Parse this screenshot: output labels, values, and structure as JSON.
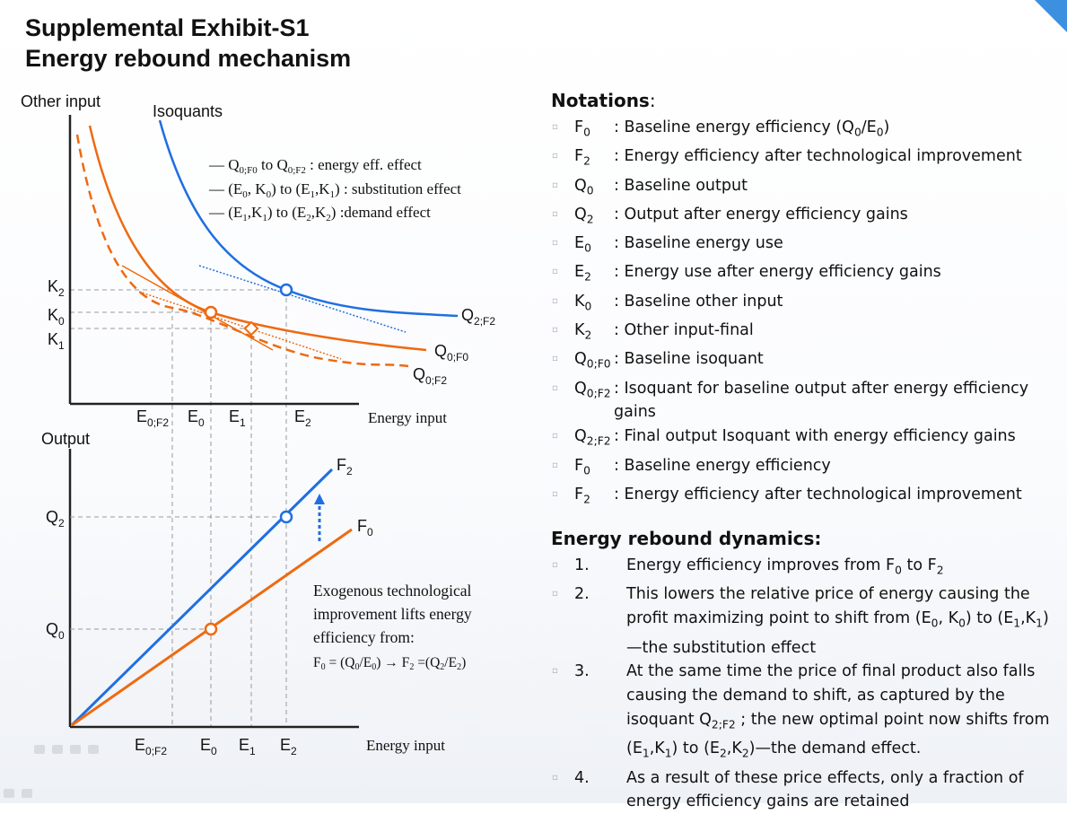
{
  "title": {
    "line1": "Supplemental Exhibit-S1",
    "line2": "Energy rebound mechanism"
  },
  "top_chart": {
    "ylabel": "Other input",
    "xlabel": "Energy input",
    "isoquants_label": "Isoquants",
    "legend": [
      "Q0;F0 to Q0;F2 : energy eff. effect",
      "(E0, K0) to (E1,K1) : substitution effect",
      "(E1,K1) to (E2,K2) :demand effect"
    ],
    "y_ticks": [
      "K2",
      "K0",
      "K1"
    ],
    "x_ticks": [
      "E0;F2",
      "E0",
      "E1",
      "E2"
    ],
    "curve_labels": [
      "Q2;F2",
      "Q0;F0",
      "Q0;F2"
    ]
  },
  "bottom_chart": {
    "ylabel": "Output",
    "xlabel": "Energy input",
    "y_ticks": [
      "Q2",
      "Q0"
    ],
    "x_ticks": [
      "E0;F2",
      "E0",
      "E1",
      "E2"
    ],
    "line_labels": [
      "F2",
      "F0"
    ],
    "annotation": [
      "Exogenous technological",
      "improvement lifts energy",
      "efficiency from:",
      "F0 = (Q0/E0) → F2 =(Q2/E2)"
    ]
  },
  "notations": {
    "heading": "Notations",
    "items": [
      {
        "sym": "F0",
        "desc": ": Baseline energy efficiency (Q0/E0)"
      },
      {
        "sym": "F2",
        "desc": ": Energy efficiency after technological improvement"
      },
      {
        "sym": "Q0",
        "desc": ": Baseline output"
      },
      {
        "sym": "Q2",
        "desc": ": Output after energy efficiency gains"
      },
      {
        "sym": "E0",
        "desc": ": Baseline energy use"
      },
      {
        "sym": "E2",
        "desc": ": Energy use after energy efficiency gains"
      },
      {
        "sym": "K0",
        "desc": ": Baseline other input"
      },
      {
        "sym": "K2",
        "desc": ": Other input-final"
      },
      {
        "sym": "Q0;F0",
        "desc": ": Baseline isoquant"
      },
      {
        "sym": "Q0;F2",
        "desc": ": Isoquant for baseline output after energy efficiency gains"
      },
      {
        "sym": "Q2;F2",
        "desc": ": Final output Isoquant with energy efficiency gains"
      },
      {
        "sym": "F0",
        "desc": ": Baseline energy efficiency"
      },
      {
        "sym": "F2",
        "desc": ": Energy efficiency after technological improvement"
      }
    ]
  },
  "dynamics": {
    "heading": "Energy rebound dynamics:",
    "items": [
      {
        "num": "1.",
        "text": "Energy efficiency improves from F0 to F2"
      },
      {
        "num": "2.",
        "text": "This lowers the relative price of energy causing the profit maximizing point to shift from (E0, K0) to (E1,K1)—the substitution effect"
      },
      {
        "num": "3.",
        "text": "At the same time the price of final product also falls causing the demand to shift, as captured by the isoquant Q2;F2 ; the new optimal point now shifts from (E1,K1) to (E2,K2)—the demand effect."
      },
      {
        "num": "4.",
        "text": "As a result of these price effects, only a fraction of energy efficiency gains are retained"
      }
    ]
  },
  "colors": {
    "blue": "#1f6fe0",
    "orange": "#ee6a10",
    "axis": "#222222",
    "guide": "#999999"
  }
}
